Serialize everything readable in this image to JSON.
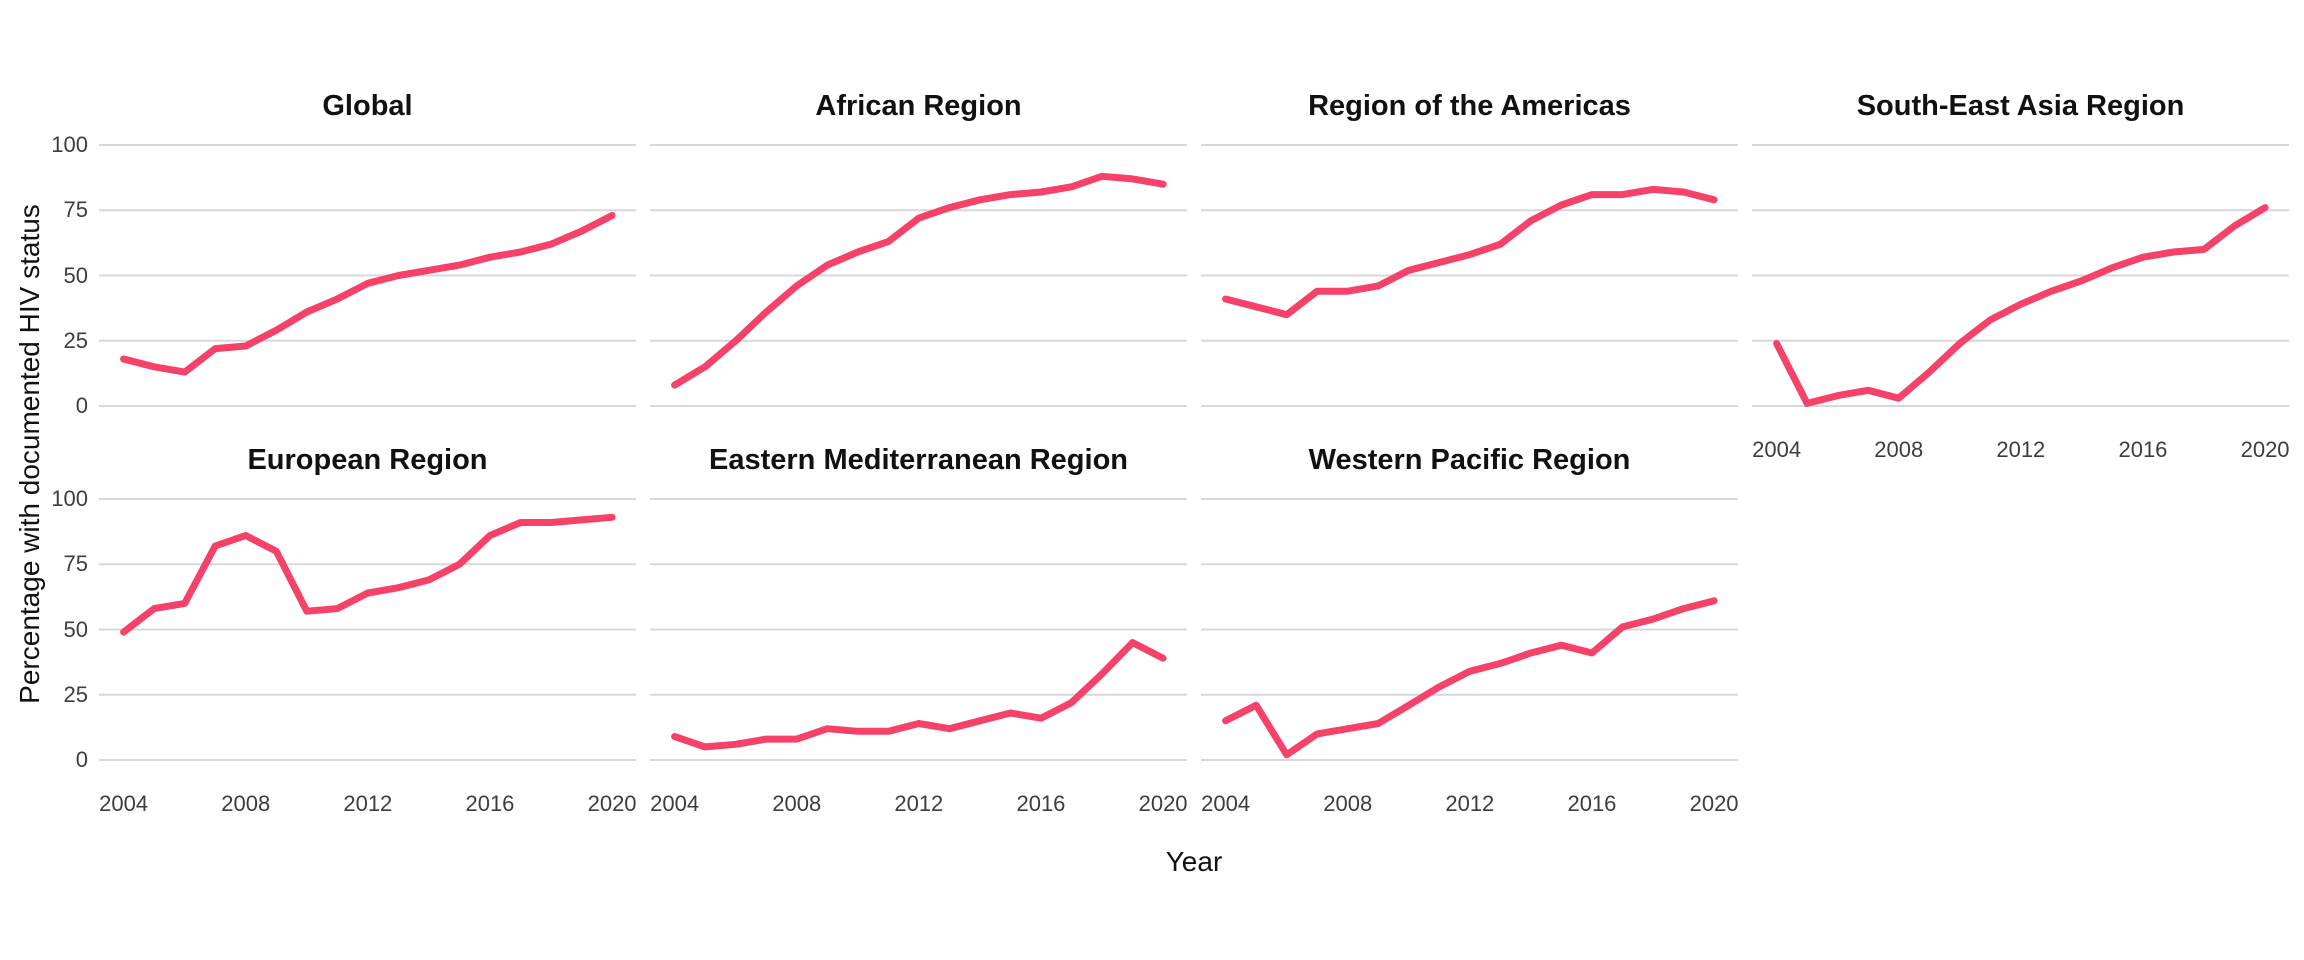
{
  "page": {
    "background": "#ffffff",
    "description": "Faceted line chart, small multiples by WHO region"
  },
  "chart_data": {
    "type": "line",
    "layout": "facet-wrap-4-columns-2-rows",
    "title": "",
    "xlabel": "Year",
    "ylabel": "Percentage with documented HIV status",
    "x": [
      2004,
      2005,
      2006,
      2007,
      2008,
      2009,
      2010,
      2011,
      2012,
      2013,
      2014,
      2015,
      2016,
      2017,
      2018,
      2019,
      2020
    ],
    "x_ticks": [
      2004,
      2008,
      2012,
      2016,
      2020
    ],
    "y_ticks": [
      0,
      25,
      50,
      75,
      100
    ],
    "xlim": [
      2003.2,
      2020.8
    ],
    "ylim": [
      0,
      100
    ],
    "grid": "horizontal-major-only",
    "legend": "none",
    "line_color": "#f64169",
    "grid_color": "#d8d8d8",
    "tick_text_color": "#3d3d3d",
    "title_text_color": "#111111",
    "series": [
      {
        "name": "Global",
        "values": [
          18,
          15,
          13,
          22,
          23,
          29,
          36,
          41,
          47,
          50,
          52,
          54,
          57,
          59,
          62,
          67,
          73
        ]
      },
      {
        "name": "African Region",
        "values": [
          8,
          15,
          25,
          36,
          46,
          54,
          59,
          63,
          72,
          76,
          79,
          81,
          82,
          84,
          88,
          87,
          85
        ]
      },
      {
        "name": "Region of the Americas",
        "values": [
          41,
          38,
          35,
          44,
          44,
          46,
          52,
          55,
          58,
          62,
          71,
          77,
          81,
          81,
          83,
          82,
          79
        ]
      },
      {
        "name": "South-East Asia Region",
        "values": [
          24,
          1,
          4,
          6,
          3,
          13,
          24,
          33,
          39,
          44,
          48,
          53,
          57,
          59,
          60,
          69,
          76
        ]
      },
      {
        "name": "European Region",
        "values": [
          49,
          58,
          60,
          82,
          86,
          80,
          57,
          58,
          64,
          66,
          69,
          75,
          86,
          91,
          91,
          92,
          93
        ]
      },
      {
        "name": "Eastern Mediterranean Region",
        "values": [
          9,
          5,
          6,
          8,
          8,
          12,
          11,
          11,
          14,
          12,
          15,
          18,
          16,
          22,
          33,
          45,
          39
        ]
      },
      {
        "name": "Western Pacific Region",
        "values": [
          15,
          21,
          2,
          10,
          12,
          14,
          21,
          28,
          34,
          37,
          41,
          44,
          41,
          51,
          54,
          58,
          61
        ]
      }
    ]
  }
}
